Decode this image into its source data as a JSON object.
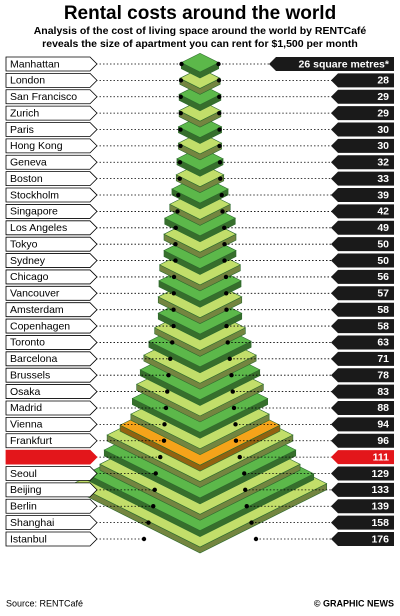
{
  "chart_data": {
    "type": "pyramid",
    "title": "Rental costs around the world",
    "subtitle": [
      "Analysis of the cost of living space around the world by RENTCafé",
      "reveals the size of apartment you can rent for $1,500 per month"
    ],
    "categories": [
      "Manhattan",
      "London",
      "San Francisco",
      "Zurich",
      "Paris",
      "Hong Kong",
      "Geneva",
      "Boston",
      "Stockholm",
      "Singapore",
      "Los Angeles",
      "Tokyo",
      "Sydney",
      "Chicago",
      "Vancouver",
      "Amsterdam",
      "Copenhagen",
      "Toronto",
      "Barcelona",
      "Brussels",
      "Osaka",
      "Madrid",
      "Vienna",
      "Frankfurt",
      null,
      "Seoul",
      "Beijing",
      "Berlin",
      "Shanghai",
      "Istanbul"
    ],
    "values": [
      26,
      28,
      29,
      29,
      30,
      30,
      32,
      33,
      39,
      42,
      49,
      50,
      50,
      56,
      57,
      58,
      58,
      63,
      71,
      78,
      83,
      88,
      94,
      96,
      111,
      129,
      133,
      139,
      158,
      176
    ],
    "value_labels": [
      "26 square metres*",
      "28",
      "29",
      "29",
      "30",
      "30",
      "32",
      "33",
      "39",
      "42",
      "49",
      "50",
      "50",
      "56",
      "57",
      "58",
      "58",
      "63",
      "71",
      "78",
      "83",
      "88",
      "94",
      "96",
      "111",
      "129",
      "133",
      "139",
      "158",
      "176"
    ],
    "colors": [
      "#5cb84a",
      "#c2de6a"
    ],
    "highlight_color": "#f5a31a",
    "source": "Source: RENTCafé",
    "credit": "© GRAPHIC NEWS"
  }
}
